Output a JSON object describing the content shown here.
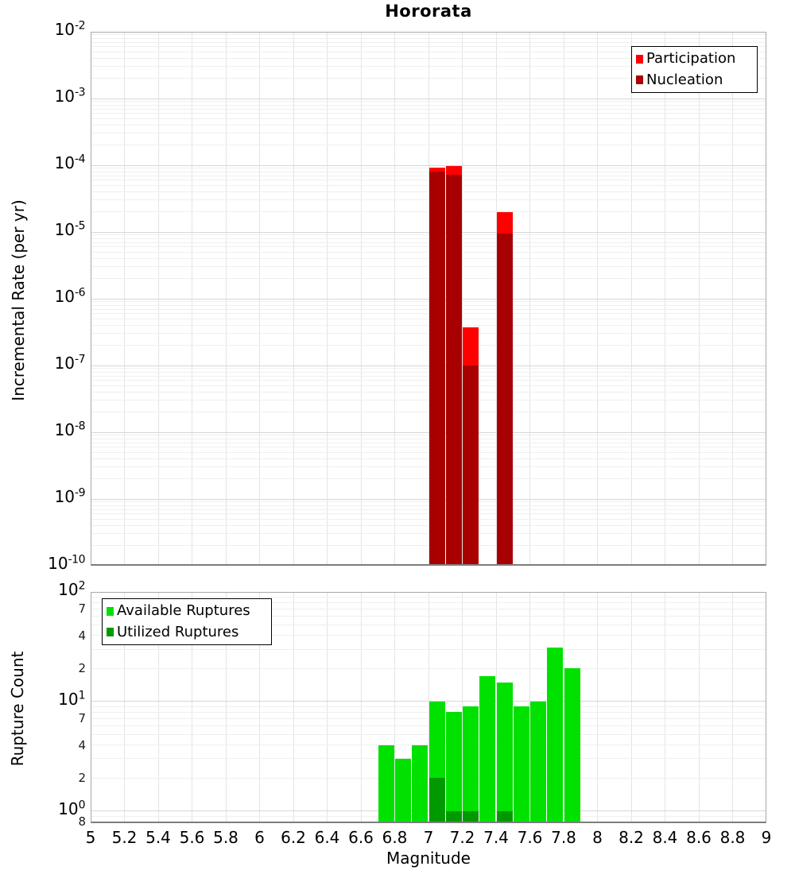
{
  "title": "Hororata",
  "xlabel": "Magnitude",
  "colors": {
    "participation": "#fe0000",
    "nucleation": "#a80000",
    "available": "#00e100",
    "utilized": "#009900",
    "grid_major": "#d7d7d7",
    "grid_minor": "#efefef",
    "frame": "#a8a8a8"
  },
  "x_ticks": [
    "5",
    "5.2",
    "5.4",
    "5.6",
    "5.8",
    "6",
    "6.2",
    "6.4",
    "6.6",
    "6.8",
    "7",
    "7.2",
    "7.4",
    "7.6",
    "7.8",
    "8",
    "8.2",
    "8.4",
    "8.6",
    "8.8",
    "9"
  ],
  "x_tick_values": [
    5,
    5.2,
    5.4,
    5.6,
    5.8,
    6,
    6.2,
    6.4,
    6.6,
    6.8,
    7,
    7.2,
    7.4,
    7.6,
    7.8,
    8,
    8.2,
    8.4,
    8.6,
    8.8,
    9
  ],
  "top_plot": {
    "ylabel": "Incremental Rate (per yr)",
    "legend": [
      {
        "label": "Participation",
        "color": "#fe0000"
      },
      {
        "label": "Nucleation",
        "color": "#a80000"
      }
    ]
  },
  "bottom_plot": {
    "ylabel": "Rupture Count",
    "legend": [
      {
        "label": "Available Ruptures",
        "color": "#00e100"
      },
      {
        "label": "Utilized Ruptures",
        "color": "#009900"
      }
    ]
  },
  "chart_data": [
    {
      "type": "bar",
      "title": "Hororata",
      "xlabel": "Magnitude",
      "ylabel": "Incremental Rate (per yr)",
      "yscale": "log",
      "xlim": [
        5,
        9
      ],
      "ylim": [
        1e-10,
        0.01
      ],
      "y_tick_exponents": [
        -2,
        -3,
        -4,
        -5,
        -6,
        -7,
        -8,
        -9,
        -10
      ],
      "grid": true,
      "legend_position": "top-right",
      "bin_width": 0.1,
      "x": [
        7.05,
        7.15,
        7.25,
        7.45
      ],
      "series": [
        {
          "name": "Participation",
          "color": "#fe0000",
          "values": [
            9.3e-05,
            9.6e-05,
            3.7e-07,
            2e-05
          ]
        },
        {
          "name": "Nucleation",
          "color": "#a80000",
          "values": [
            8e-05,
            7.2e-05,
            1e-07,
            9.4e-06
          ]
        }
      ]
    },
    {
      "type": "bar",
      "xlabel": "Magnitude",
      "ylabel": "Rupture Count",
      "yscale": "log",
      "xlim": [
        5,
        9
      ],
      "ylim": [
        0.775,
        100
      ],
      "y_tick_exponents": [
        2,
        1,
        0
      ],
      "minor_y_tick_labels": [
        {
          "value": 70,
          "label": "7"
        },
        {
          "value": 40,
          "label": "4"
        },
        {
          "value": 20,
          "label": "2"
        },
        {
          "value": 7,
          "label": "7"
        },
        {
          "value": 4,
          "label": "4"
        },
        {
          "value": 2,
          "label": "2"
        },
        {
          "value": 0.8,
          "label": "8"
        }
      ],
      "grid": true,
      "legend_position": "top-left",
      "bin_width": 0.1,
      "x": [
        6.75,
        6.85,
        6.95,
        7.05,
        7.15,
        7.25,
        7.35,
        7.45,
        7.55,
        7.65,
        7.75,
        7.85
      ],
      "series": [
        {
          "name": "Available Ruptures",
          "color": "#00e100",
          "values": [
            4,
            3,
            4,
            10,
            8,
            9,
            17,
            15,
            9,
            10,
            31,
            20
          ]
        },
        {
          "name": "Utilized Ruptures",
          "color": "#009900",
          "values": [
            0,
            0,
            0,
            2,
            1,
            1,
            0,
            1,
            0,
            0,
            0,
            0
          ]
        }
      ]
    }
  ]
}
